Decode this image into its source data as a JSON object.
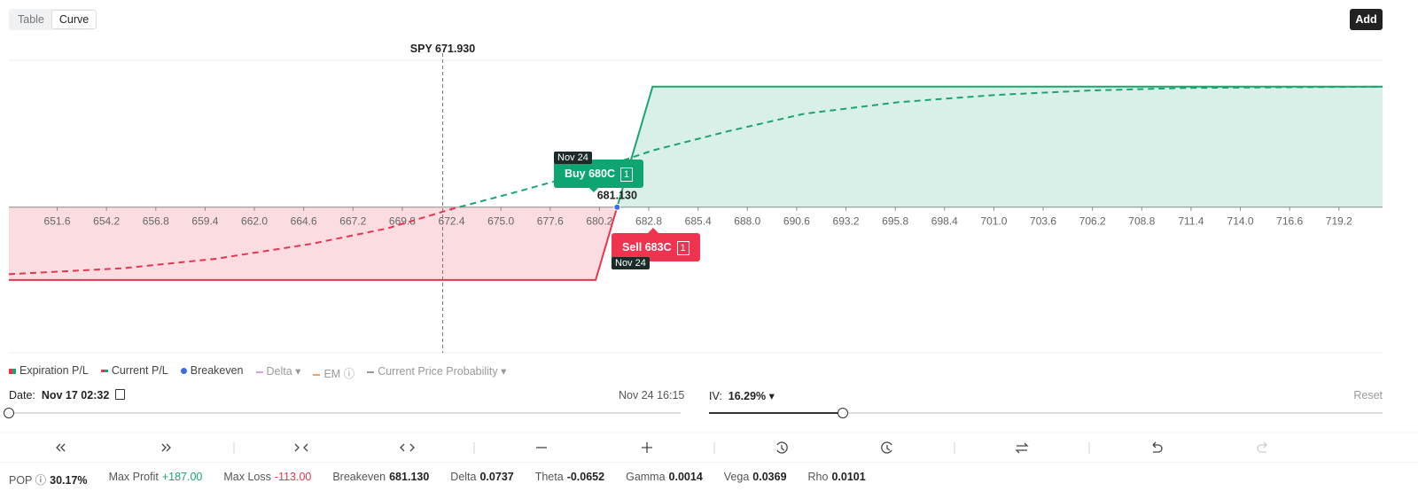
{
  "tabs": [
    "Table",
    "Curve"
  ],
  "add_button": "Add",
  "chart": {
    "xlim": [
      649.05,
      721.5
    ],
    "ylim": [
      -226,
      228
    ],
    "xticks": [
      651.6,
      654.2,
      656.8,
      659.4,
      {
        "value": 662,
        "label": "662.0"
      },
      664.6,
      667.2,
      669.8,
      672.4,
      {
        "value": 675,
        "label": "675.0"
      },
      677.6,
      680.2,
      682.8,
      685.4,
      {
        "value": 688,
        "label": "688.0"
      },
      690.6,
      693.2,
      695.8,
      698.4,
      {
        "value": 701,
        "label": "701.0"
      },
      703.6,
      706.2,
      708.8,
      711.4,
      {
        "value": 714,
        "label": "714.0"
      },
      716.6,
      719.2
    ],
    "spot": {
      "value": 671.93,
      "label": "SPY 671.930"
    },
    "breakeven": {
      "value": 681.13,
      "label": "681.130",
      "color": "#3b6fe0"
    },
    "profit_color": "#1aa56f",
    "loss_color": "#e8344e",
    "series": [
      {
        "name": "Expiration P/L",
        "dashed": false,
        "x": [
          649.05,
          680,
          683,
          721.5
        ],
        "values": [
          -113,
          -113,
          187,
          187
        ]
      },
      {
        "name": "Current P/L",
        "dashed": true,
        "x": [
          649.05,
          655,
          660,
          665,
          669,
          672.4,
          676,
          680,
          683,
          687,
          691,
          696,
          701,
          706,
          711,
          716,
          721.5
        ],
        "values": [
          -104,
          -95,
          -80,
          -57,
          -33,
          -3,
          25,
          58,
          88,
          118,
          145,
          163,
          174,
          181,
          185,
          186,
          187
        ]
      }
    ],
    "positions": [
      {
        "label": "Buy 680C",
        "qty": "1",
        "expiry": "Nov 24"
      },
      {
        "label": "Sell 683C",
        "qty": "1",
        "expiry": "Nov 24"
      }
    ]
  },
  "legend_extra": [
    "Breakeven",
    "Delta",
    "EM",
    "Current Price Probability"
  ],
  "date": {
    "label": "Date:",
    "value": "Nov 17 02:32",
    "end": "Nov 24 16:15"
  },
  "iv": {
    "label": "IV:",
    "value": "16.29%",
    "reset": "Reset"
  },
  "stats": [
    {
      "label": "POP",
      "value": "30.17%"
    },
    {
      "label": "Max Profit",
      "value": "+187.00"
    },
    {
      "label": "Max Loss",
      "value": "-113.00"
    },
    {
      "label": "Breakeven",
      "value": "681.130"
    },
    {
      "label": "Delta",
      "value": "0.0737"
    },
    {
      "label": "Theta",
      "value": "-0.0652"
    },
    {
      "label": "Gamma",
      "value": "0.0014"
    },
    {
      "label": "Vega",
      "value": "0.0369"
    },
    {
      "label": "Rho",
      "value": "0.0101"
    }
  ]
}
